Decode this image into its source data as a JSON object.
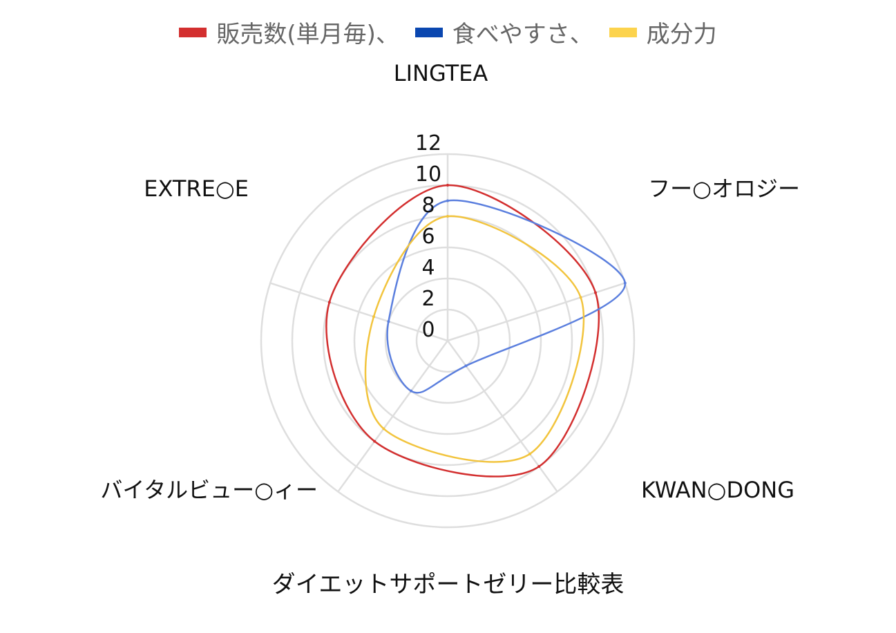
{
  "chart_data": {
    "type": "radar",
    "title": "ダイエットサポートゼリー比較表",
    "categories": [
      "LINGTEA",
      "フー○オロジー",
      "KWAN○DONG",
      "バイタルビュー○ィー",
      "EXTRE○E"
    ],
    "scale_ticks": [
      "0",
      "2",
      "4",
      "6",
      "8",
      "10",
      "12"
    ],
    "rlim": [
      0,
      12
    ],
    "grid": true,
    "legend_position": "top",
    "series": [
      {
        "name": "販売数(単月毎)、",
        "color": "#d32f2f",
        "values": [
          10,
          10,
          10,
          8,
          8
        ]
      },
      {
        "name": "食べやすさ、",
        "color": "#5b7fde",
        "values": [
          9,
          12,
          2,
          4,
          4
        ]
      },
      {
        "name": "成分力",
        "color": "#f2c43d",
        "values": [
          8,
          9,
          9,
          7,
          5
        ]
      }
    ]
  },
  "legend_colors": [
    "#d32f2f",
    "#0a47b0",
    "#fcd34d"
  ]
}
